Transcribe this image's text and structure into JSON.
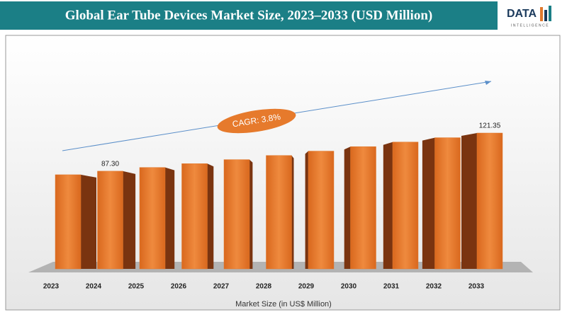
{
  "chart_data": {
    "type": "bar3d",
    "title": "Global Ear Tube Devices Market Size, 2023–2033 (USD Million)",
    "brand": "DATA",
    "brand_sub": "INTELLIGENCE",
    "annotation": "CAGR: 3.8%",
    "xlabel": "Market Size (in US$ Million)",
    "categories": [
      "2023",
      "2024",
      "2025",
      "2026",
      "2027",
      "2028",
      "2029",
      "2030",
      "2031",
      "2032",
      "2033"
    ],
    "values": [
      84.1,
      87.3,
      90.6,
      94.0,
      97.6,
      101.3,
      105.2,
      109.2,
      113.3,
      117.2,
      121.35
    ],
    "value_labels": [
      null,
      "87.30",
      null,
      null,
      null,
      null,
      null,
      null,
      null,
      null,
      "121.35"
    ],
    "color": "#e07a2e"
  }
}
